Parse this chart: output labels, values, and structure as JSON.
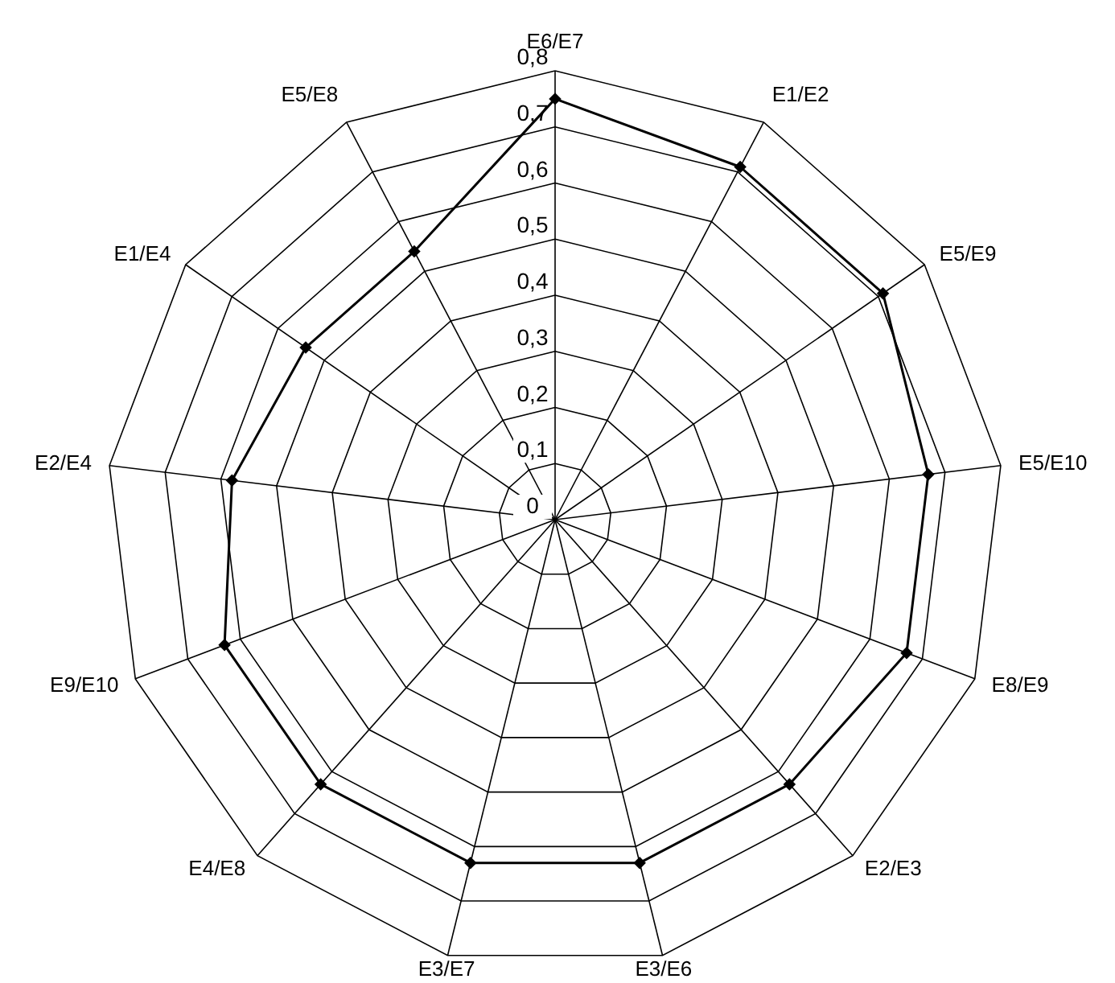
{
  "chart_data": {
    "type": "radar",
    "categories": [
      "E6/E7",
      "E1/E2",
      "E5/E9",
      "E5/E10",
      "E8/E9",
      "E2/E3",
      "E3/E6",
      "E3/E7",
      "E4/E8",
      "E9/E10",
      "E2/E4",
      "E1/E4",
      "E5/E8"
    ],
    "series": [
      {
        "color": "#000000",
        "values": [
          0.75,
          0.71,
          0.71,
          0.67,
          0.67,
          0.63,
          0.63,
          0.63,
          0.63,
          0.63,
          0.58,
          0.54,
          0.54
        ]
      }
    ],
    "ylim": [
      0,
      0.8
    ],
    "yticks": [
      0,
      {
        "value": 0.1,
        "label": "0,1"
      },
      {
        "value": 0.2,
        "label": "0,2"
      },
      {
        "value": 0.3,
        "label": "0,3"
      },
      {
        "value": 0.4,
        "label": "0,4"
      },
      {
        "value": 0.5,
        "label": "0,5"
      },
      {
        "value": 0.6,
        "label": "0,6"
      },
      {
        "value": 0.7,
        "label": "0,7"
      },
      {
        "value": 0.8,
        "label": "0,8"
      }
    ],
    "grid": true,
    "marker": "diamond",
    "line_style": "solid"
  }
}
